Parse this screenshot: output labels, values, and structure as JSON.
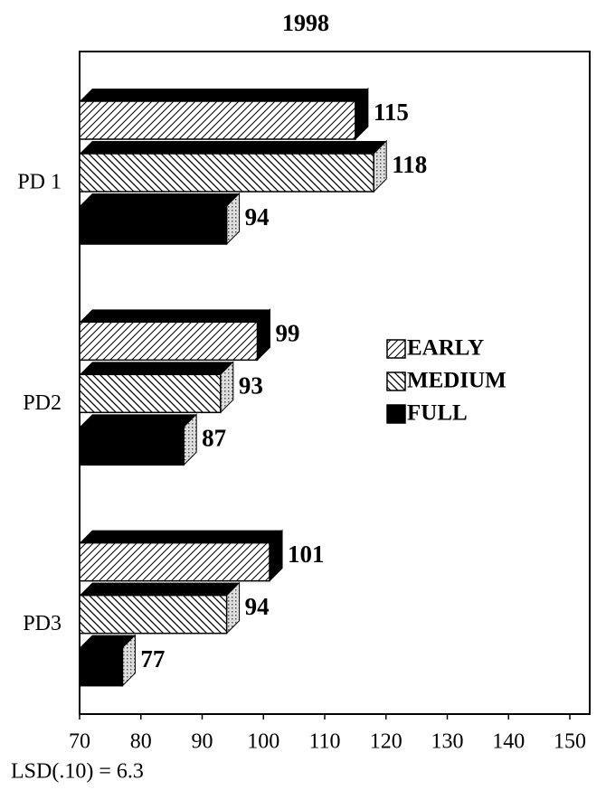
{
  "chart_data": {
    "type": "bar",
    "orientation": "horizontal",
    "title": "1998",
    "categories": [
      "PD 1",
      "PD2",
      "PD3"
    ],
    "series": [
      {
        "name": "EARLY",
        "color": "#000000",
        "hatch": "forward",
        "values": [
          115,
          99,
          101
        ]
      },
      {
        "name": "MEDIUM",
        "color": "#000000",
        "hatch": "back",
        "values": [
          118,
          93,
          94
        ]
      },
      {
        "name": "FULL",
        "color": "#000000",
        "hatch": "solid",
        "values": [
          94,
          87,
          77
        ]
      }
    ],
    "xlim": [
      70,
      150
    ],
    "xticks": [
      70,
      80,
      90,
      100,
      110,
      120,
      130,
      140,
      150
    ],
    "annotation": "LSD(.10) = 6.3",
    "legend": "right"
  }
}
